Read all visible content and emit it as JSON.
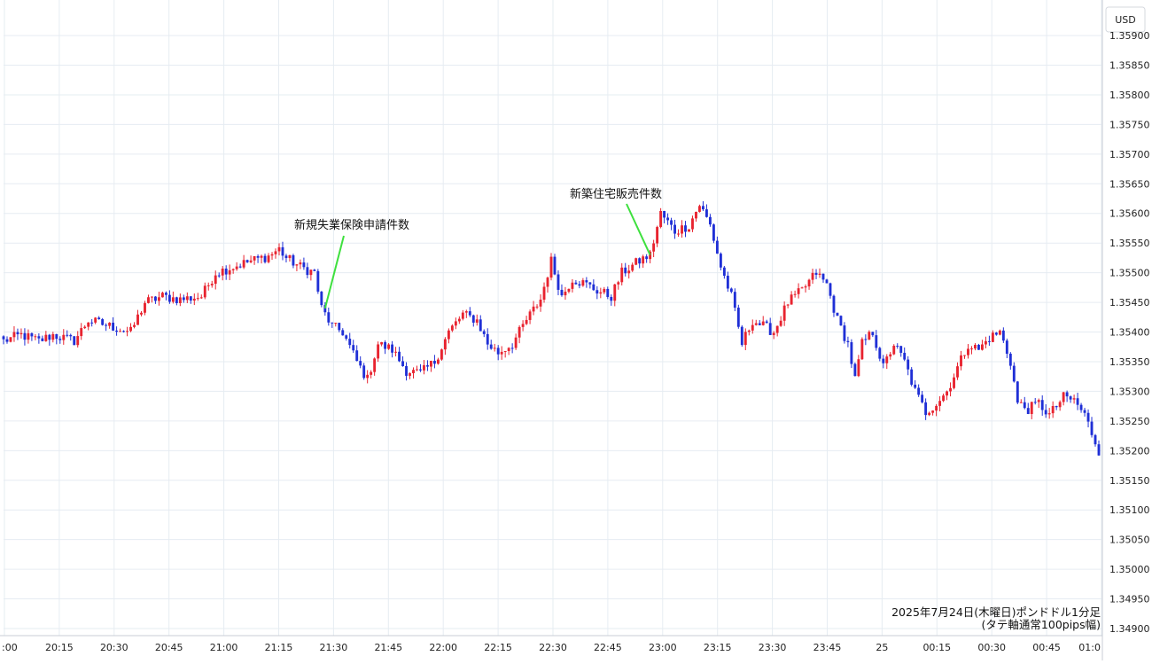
{
  "chart_data": {
    "type": "candlestick",
    "currency_label": "USD",
    "y_range": [
      1.349,
      1.3593
    ],
    "y_ticks": [
      "1.35900",
      "1.35850",
      "1.35800",
      "1.35750",
      "1.35700",
      "1.35650",
      "1.35600",
      "1.35550",
      "1.35500",
      "1.35450",
      "1.35400",
      "1.35350",
      "1.35300",
      "1.35250",
      "1.35200",
      "1.35150",
      "1.35100",
      "1.35050",
      "1.35000",
      "1.34950",
      "1.34900"
    ],
    "x_ticks": [
      ":00",
      "20:15",
      "20:30",
      "20:45",
      "21:00",
      "21:15",
      "21:30",
      "21:45",
      "22:00",
      "22:15",
      "22:30",
      "22:45",
      "23:00",
      "23:15",
      "23:30",
      "23:45",
      "25",
      "00:15",
      "00:30",
      "00:45",
      "01:0"
    ],
    "grid": true,
    "up_color": "#e8232f",
    "down_color": "#1f2fd6",
    "annotation_color": "#3ee03e",
    "annotations": [
      {
        "text": "新規失業保険申請件数",
        "time_index": 91,
        "price": 1.3544
      },
      {
        "text": "新築住宅販売件数",
        "time_index": 183,
        "price": 1.3553
      }
    ],
    "caption_line1": "2025年7月24日(木曜日)ポンドドル1分足",
    "caption_line2": "(タテ軸通常100pips幅)",
    "anchors": [
      [
        0,
        1.35385
      ],
      [
        5,
        1.35395
      ],
      [
        10,
        1.35385
      ],
      [
        14,
        1.35395
      ],
      [
        20,
        1.35385
      ],
      [
        24,
        1.3542
      ],
      [
        30,
        1.3541
      ],
      [
        36,
        1.354
      ],
      [
        40,
        1.3545
      ],
      [
        45,
        1.3546
      ],
      [
        50,
        1.35455
      ],
      [
        56,
        1.3546
      ],
      [
        60,
        1.355
      ],
      [
        65,
        1.3551
      ],
      [
        70,
        1.3552
      ],
      [
        75,
        1.35528
      ],
      [
        78,
        1.3554
      ],
      [
        80,
        1.35525
      ],
      [
        84,
        1.3551
      ],
      [
        88,
        1.355
      ],
      [
        90,
        1.3544
      ],
      [
        93,
        1.3541
      ],
      [
        96,
        1.354
      ],
      [
        100,
        1.3535
      ],
      [
        103,
        1.3532
      ],
      [
        106,
        1.3538
      ],
      [
        110,
        1.3537
      ],
      [
        114,
        1.35335
      ],
      [
        118,
        1.3533
      ],
      [
        122,
        1.3535
      ],
      [
        126,
        1.354
      ],
      [
        130,
        1.3543
      ],
      [
        134,
        1.3542
      ],
      [
        137,
        1.3538
      ],
      [
        140,
        1.35365
      ],
      [
        144,
        1.3538
      ],
      [
        148,
        1.3542
      ],
      [
        152,
        1.35455
      ],
      [
        155,
        1.3552
      ],
      [
        158,
        1.3546
      ],
      [
        161,
        1.3549
      ],
      [
        165,
        1.3548
      ],
      [
        168,
        1.3547
      ],
      [
        172,
        1.3546
      ],
      [
        175,
        1.355
      ],
      [
        180,
        1.3552
      ],
      [
        183,
        1.3553
      ],
      [
        186,
        1.356
      ],
      [
        190,
        1.3557
      ],
      [
        194,
        1.3558
      ],
      [
        197,
        1.35615
      ],
      [
        200,
        1.3558
      ],
      [
        203,
        1.3551
      ],
      [
        206,
        1.3546
      ],
      [
        209,
        1.3538
      ],
      [
        212,
        1.3542
      ],
      [
        215,
        1.3541
      ],
      [
        218,
        1.354
      ],
      [
        222,
        1.3545
      ],
      [
        226,
        1.3547
      ],
      [
        230,
        1.355
      ],
      [
        233,
        1.3548
      ],
      [
        236,
        1.3542
      ],
      [
        239,
        1.3538
      ],
      [
        241,
        1.3532
      ],
      [
        243,
        1.3538
      ],
      [
        246,
        1.354
      ],
      [
        249,
        1.3534
      ],
      [
        252,
        1.3538
      ],
      [
        255,
        1.3535
      ],
      [
        258,
        1.353
      ],
      [
        261,
        1.35265
      ],
      [
        264,
        1.3528
      ],
      [
        267,
        1.353
      ],
      [
        270,
        1.3534
      ],
      [
        273,
        1.3538
      ],
      [
        276,
        1.3537
      ],
      [
        279,
        1.3539
      ],
      [
        282,
        1.354
      ],
      [
        285,
        1.3535
      ],
      [
        287,
        1.3528
      ],
      [
        290,
        1.3527
      ],
      [
        293,
        1.3528
      ],
      [
        296,
        1.3526
      ],
      [
        300,
        1.3529
      ],
      [
        303,
        1.35285
      ],
      [
        306,
        1.3526
      ],
      [
        308,
        1.3523
      ],
      [
        310,
        1.352
      ]
    ]
  }
}
